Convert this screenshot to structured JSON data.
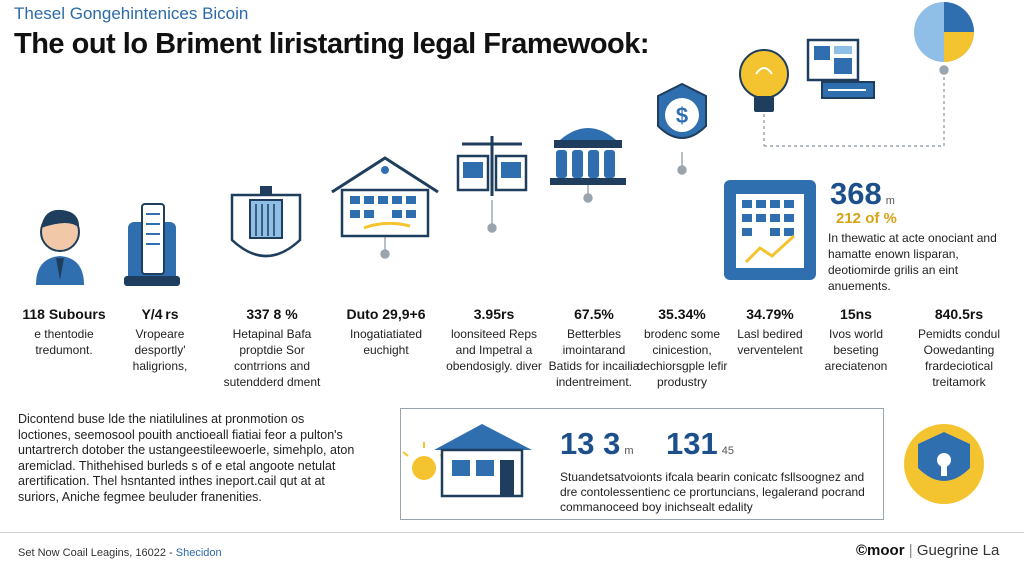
{
  "header": {
    "subtitle": "Thesel Gongehintenices Bicoin",
    "title": "The out lo Briment liristarting legal Framewook:"
  },
  "columns": [
    {
      "value": "118 Subours",
      "desc": "e thentodie tredumont.",
      "icon": "person-icon"
    },
    {
      "value": "Y/4 rs",
      "desc": "Vropeare desportly' haligrions,",
      "icon": "document-holder-icon"
    },
    {
      "value": "337 8 %",
      "desc": "Hetapinal Bafa proptdie Sor contrrions and sutendderd dment",
      "icon": "shield-building-icon"
    },
    {
      "value": "Duto 29,9+6",
      "desc": "Inogatiatiated euchight",
      "icon": "house-chart-icon"
    },
    {
      "value": "3.95rs",
      "desc": "loonsiteed Reps and Impetral a obendosigly. diver",
      "icon": "scale-icon"
    },
    {
      "value": "67.5%",
      "desc": "Betterbles imointarand Batids for incailia indentreiment.",
      "icon": "courthouse-icon"
    },
    {
      "value": "35.34%",
      "desc": "brodenc some cinicestion, dechiorsgple lefir produstry",
      "icon": "dollar-shield-icon"
    },
    {
      "value": "34.79%",
      "desc": "Lasl bedired verventelent",
      "icon": "lightbulb-icon"
    },
    {
      "value": "15ns",
      "desc": "Ivos world beseting areciatenon",
      "icon": "monitor-icon"
    },
    {
      "value": "840.5rs",
      "desc": "Pemidts condul Oowedanting frardeciotical treitamork",
      "icon": "pie-chart-icon"
    }
  ],
  "right_stat": {
    "big": "368",
    "big_unit": "m",
    "small": "212 of %",
    "desc": "In thewatic at acte onociant and hamatte enown lisparan, deotiomirde grilis an eint anuements.",
    "icon": "building-chart-icon"
  },
  "left_paragraph": "Dicontend buse lde the niatilulines at pronmotion os loctiones, seemosool pouith anctioeall fiatiai feor a pulton's untartrerch dotober the ustangeestileewoerle, simehplo, aton aremiclad. Thithehised burleds s of e etal angoote netulat arertification. Thel hsntanted inthes ineport.cail qut at at suriors, Aniche fegmee beuluder franenities.",
  "panel": {
    "n1": "13 3",
    "n1_unit": "m",
    "n2": "131",
    "n2_unit": "45",
    "desc": "Stuandetsatvoionts ifcala bearin conicatc fsllsoognez and dre contolessentienc ce prortuncians, legalerand pocrand commanoceed boy inichsealt edality",
    "icon_left": "house-sun-icon",
    "icon_right": "shield-lock-icon"
  },
  "footer": {
    "left": "Set Now Coail Leagins, 16022 -",
    "left_accent": "Shecidon",
    "brand_bold": "©moor",
    "brand_rest": "Guegrine La"
  },
  "colors": {
    "primary_blue": "#2f6fb0",
    "light_blue": "#8fbfe6",
    "accent_yellow": "#f4c430",
    "text": "#1a1a1a"
  }
}
